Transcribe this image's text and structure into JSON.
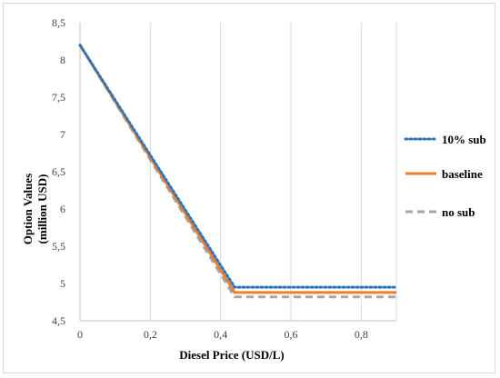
{
  "chart_data": {
    "type": "line",
    "title": "",
    "xlabel": "Diesel Price (USD/L)",
    "ylabel_lines": [
      "Option Values",
      "(million USD)"
    ],
    "xlim": [
      0,
      0.9
    ],
    "ylim": [
      4.5,
      8.5
    ],
    "x_ticks": [
      0,
      0.2,
      0.4,
      0.6,
      0.8
    ],
    "x_tick_labels": [
      "0",
      "0,2",
      "0,4",
      "0,6",
      "0,8"
    ],
    "y_ticks": [
      4.5,
      5,
      5.5,
      6,
      6.5,
      7,
      7.5,
      8,
      8.5
    ],
    "y_tick_labels": [
      "4,5",
      "5",
      "5,5",
      "6",
      "6,5",
      "7",
      "7,5",
      "8",
      "8,5"
    ],
    "grid": "vertical",
    "legend_position": "right",
    "series": [
      {
        "name": "10% sub",
        "color": "#2e75b6",
        "style": "dotted",
        "x": [
          0,
          0.44,
          0.9
        ],
        "y": [
          8.2,
          4.95,
          4.95
        ]
      },
      {
        "name": "baseline",
        "color": "#ed7d31",
        "style": "solid",
        "x": [
          0,
          0.44,
          0.9
        ],
        "y": [
          8.2,
          4.88,
          4.88
        ]
      },
      {
        "name": "no sub",
        "color": "#a5a5a5",
        "style": "dashed",
        "x": [
          0,
          0.44,
          0.9
        ],
        "y": [
          8.2,
          4.82,
          4.82
        ]
      }
    ]
  }
}
